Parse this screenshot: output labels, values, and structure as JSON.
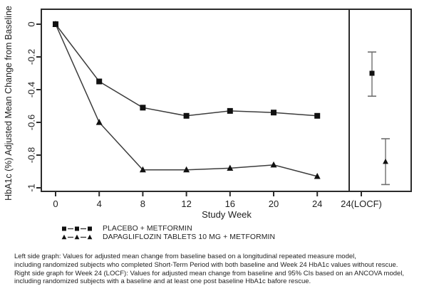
{
  "chart_data": {
    "type": "line",
    "title": "",
    "xlabel": "Study Week",
    "ylabel": "HbA1c (%) Adjusted Mean Change from Baseline",
    "x_ticks": [
      0,
      4,
      8,
      12,
      16,
      20,
      24
    ],
    "x_ticklabels": [
      "0",
      "4",
      "8",
      "12",
      "16",
      "20",
      "24"
    ],
    "locf_ticklabel": "24(LOCF)",
    "y_ticks": [
      0,
      -0.2,
      -0.4,
      -0.6,
      -0.8,
      -1
    ],
    "y_ticklabels": [
      "0",
      "-0.2",
      "-0.4",
      "-0.6",
      "-0.8",
      "-1"
    ],
    "ylim": [
      -1.05,
      0.05
    ],
    "xlim_weeks": [
      0,
      24
    ],
    "grid": false,
    "legend_position": "bottom-left",
    "panels": [
      "longitudinal (weeks 0-24)",
      "Week 24 LOCF with 95% CI"
    ],
    "series": [
      {
        "name": "PLACEBO + METFORMIN",
        "marker": "square",
        "weeks": [
          0,
          4,
          8,
          12,
          16,
          20,
          24
        ],
        "values": [
          0,
          -0.35,
          -0.51,
          -0.56,
          -0.53,
          -0.54,
          -0.56
        ],
        "week24_locf": {
          "value": -0.3,
          "ci_low": -0.44,
          "ci_high": -0.17
        }
      },
      {
        "name": "DAPAGLIFLOZIN TABLETS 10 MG + METFORMIN",
        "marker": "triangle",
        "weeks": [
          0,
          4,
          8,
          12,
          16,
          20,
          24
        ],
        "values": [
          0,
          -0.6,
          -0.89,
          -0.89,
          -0.88,
          -0.86,
          -0.93
        ],
        "week24_locf": {
          "value": -0.84,
          "ci_low": -0.98,
          "ci_high": -0.7
        }
      }
    ],
    "colors": {
      "line": "#3c3c3c",
      "marker": "#111111",
      "error_bar": "#6e6e6e",
      "axis": "#2b2b2b",
      "text": "#1f1f1f",
      "background": "#ffffff"
    }
  },
  "footnotes": {
    "lines": [
      "Left side graph: Values for adjusted mean change from baseline based on a longitudinal repeated measure model,",
      "including randomized subjects who completed Short-Term Period with both baseline and Week 24 HbA1c values without rescue.",
      "Right side graph for Week 24 (LOCF): Values for adjusted mean change from baseline and 95% CIs based on an ANCOVA model,",
      "including randomized subjects with a baseline and at least one post baseline HbA1c bafore rescue."
    ]
  }
}
